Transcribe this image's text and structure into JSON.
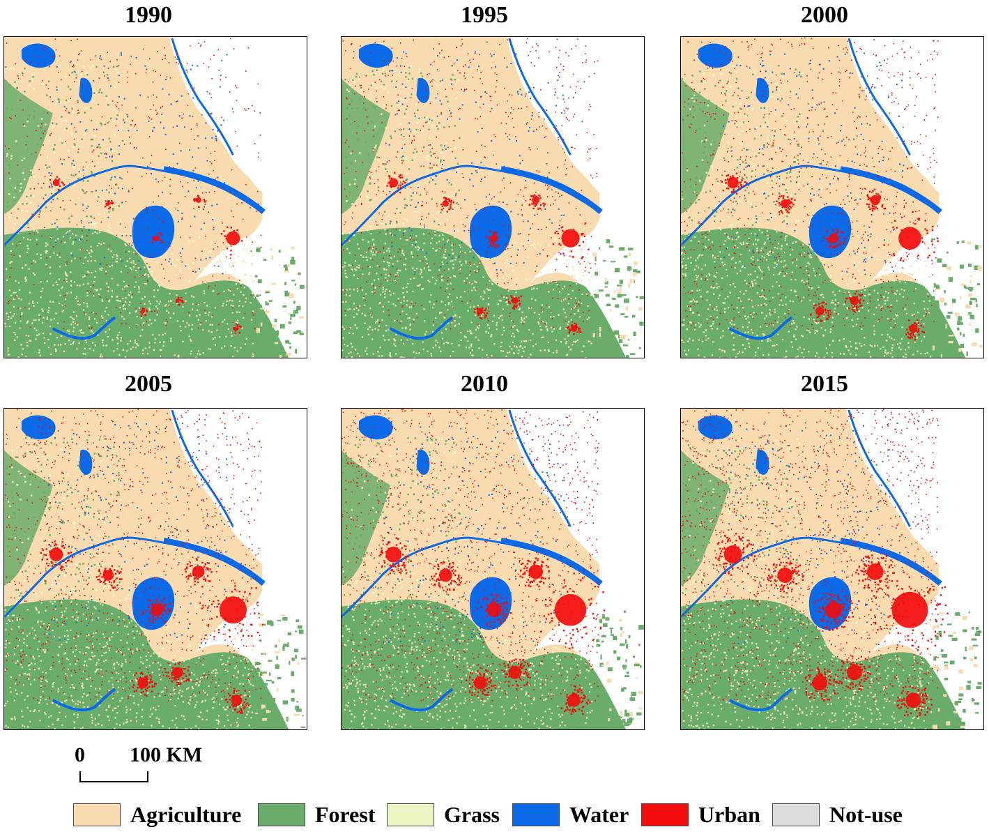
{
  "panels": [
    {
      "year": "1990",
      "urban_level": 0
    },
    {
      "year": "1995",
      "urban_level": 1
    },
    {
      "year": "2000",
      "urban_level": 2
    },
    {
      "year": "2005",
      "urban_level": 3
    },
    {
      "year": "2010",
      "urban_level": 4
    },
    {
      "year": "2015",
      "urban_level": 5
    }
  ],
  "scale": {
    "start": "0",
    "end": "100 KM"
  },
  "legend": [
    {
      "label": "Agriculture",
      "color": "#f8dcb0"
    },
    {
      "label": "Forest",
      "color": "#6aad6a"
    },
    {
      "label": "Grass",
      "color": "#eaf9c4"
    },
    {
      "label": "Water",
      "color": "#0a6ae8"
    },
    {
      "label": "Urban",
      "color": "#f20c0c"
    },
    {
      "label": "Not-use",
      "color": "#dcdcdc"
    }
  ]
}
